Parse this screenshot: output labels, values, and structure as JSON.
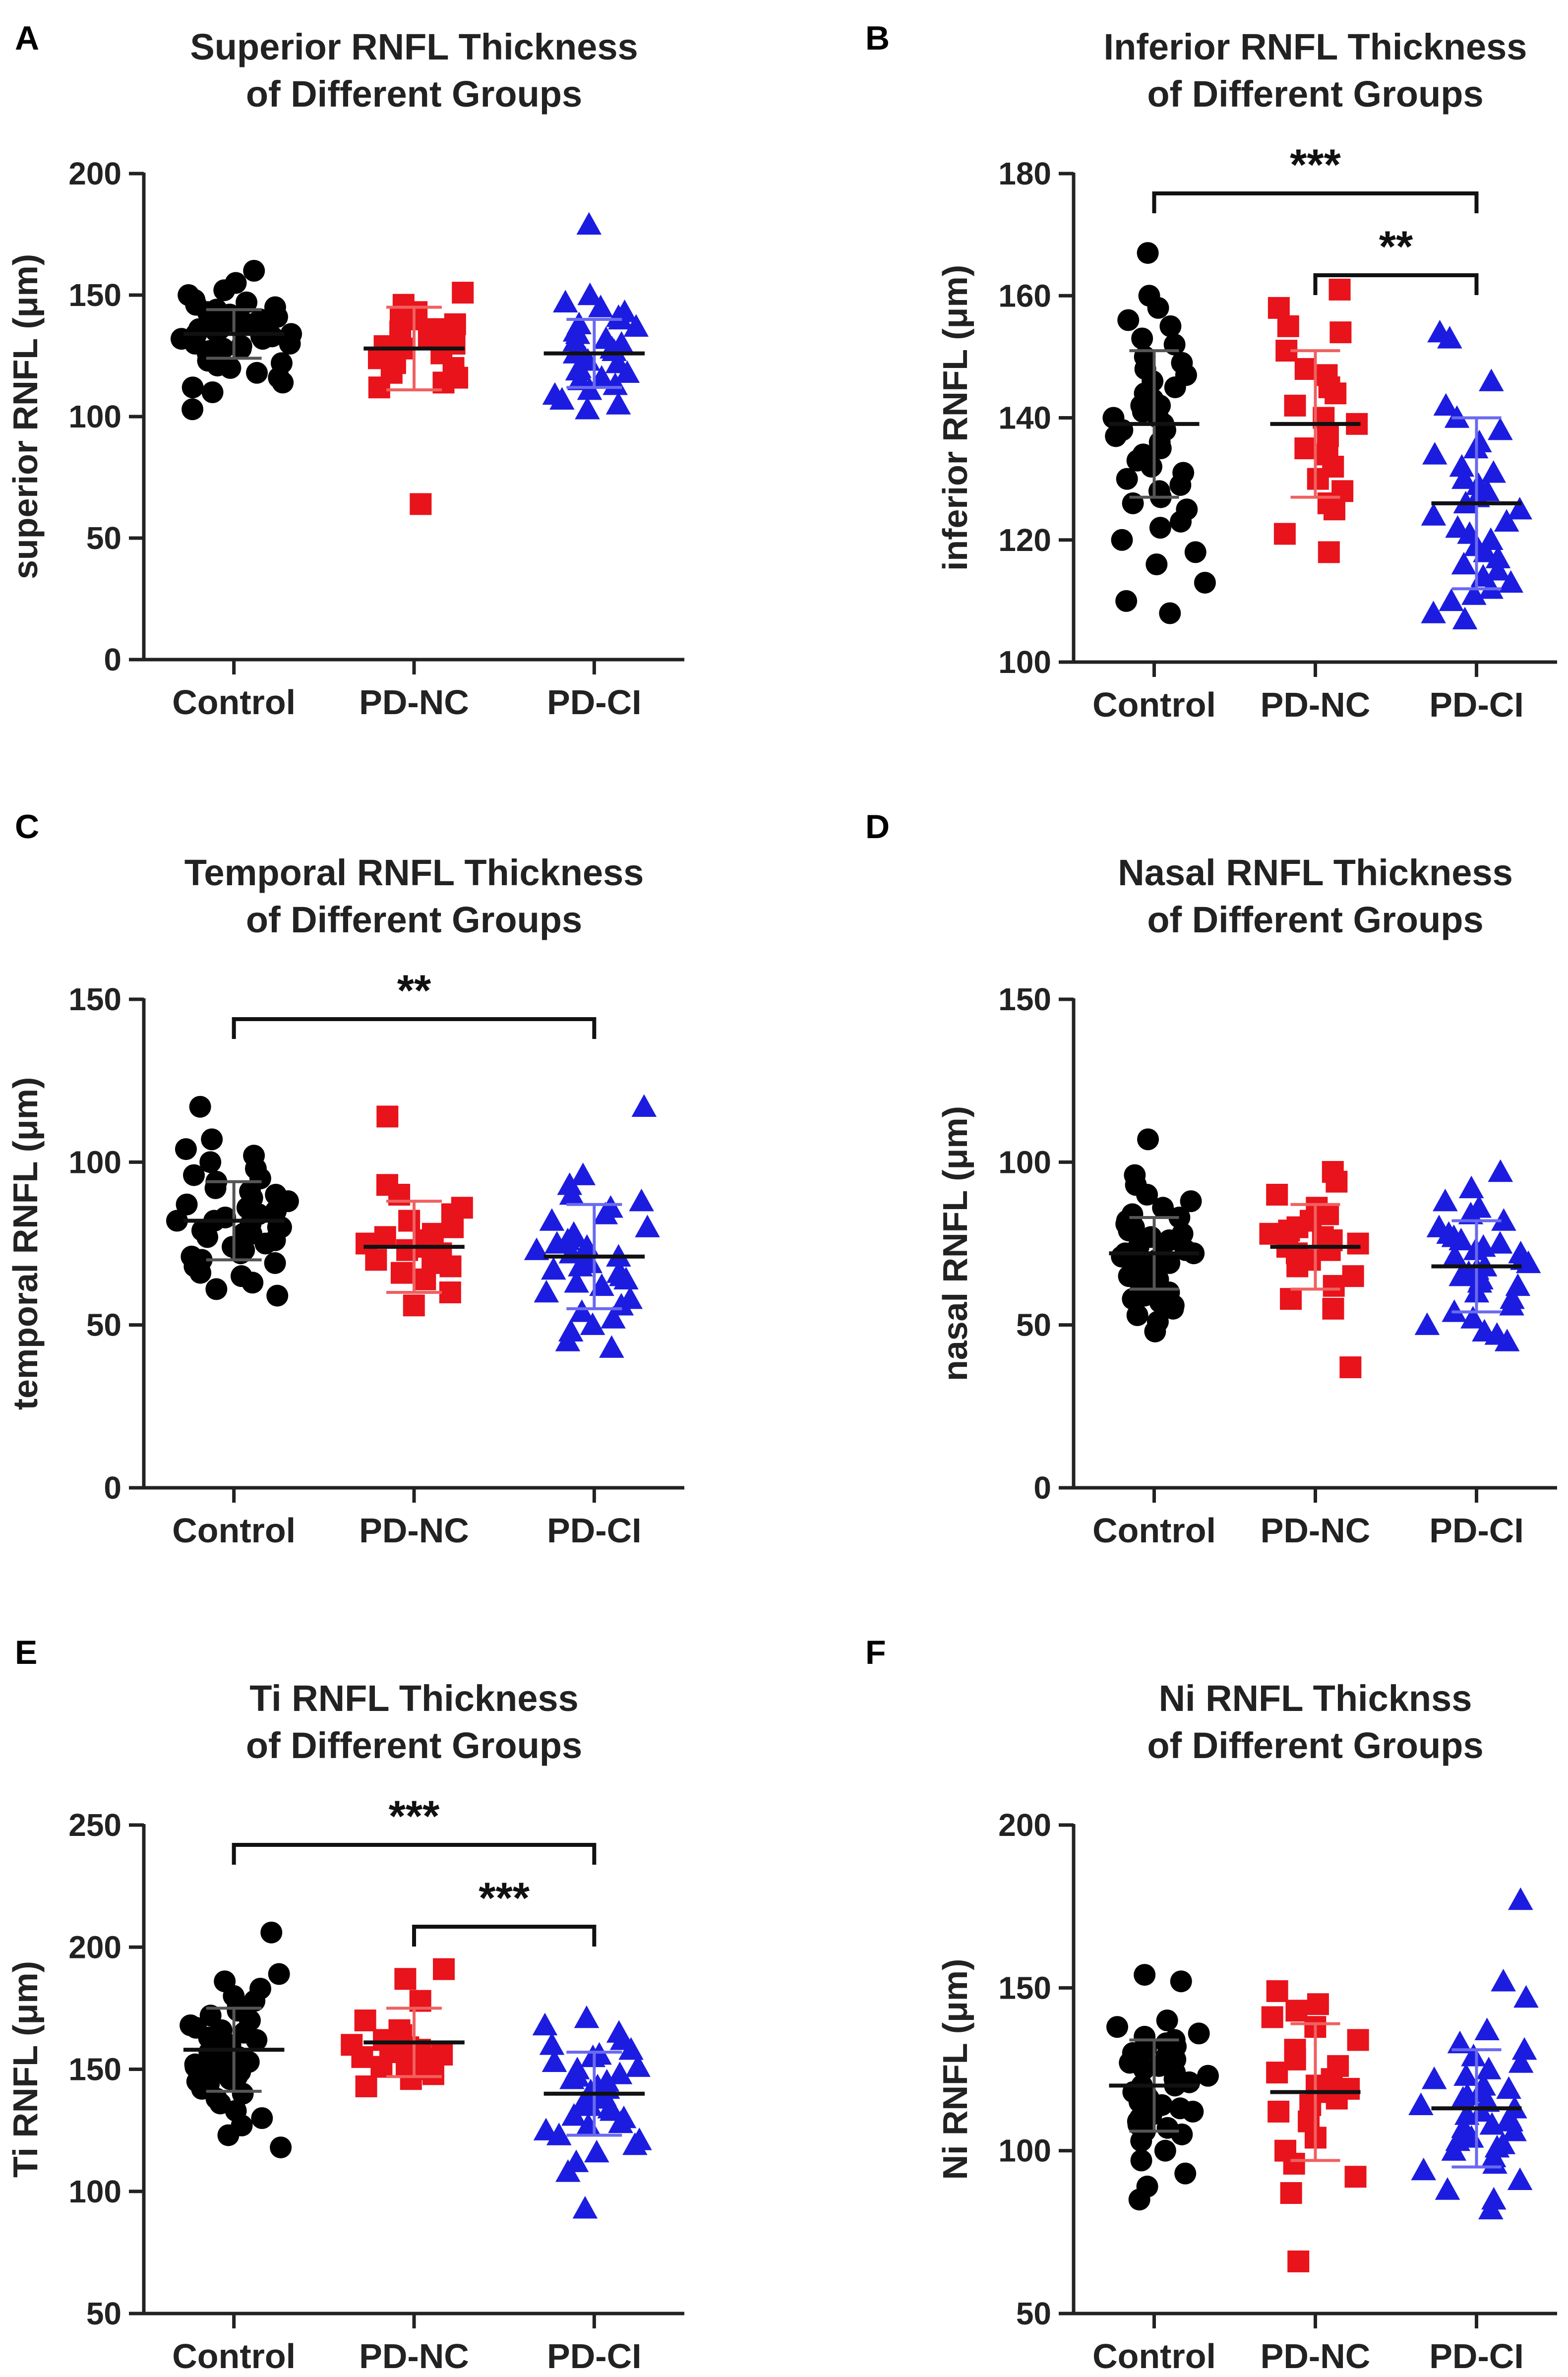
{
  "chart_data": [
    {
      "panel": "A",
      "type": "scatter",
      "title": [
        "Superior RNFL Thickness",
        "of Different Groups"
      ],
      "ylabel": "superior RNFL (μm)",
      "categories": [
        "Control",
        "PD-NC",
        "PD-CI"
      ],
      "ylim": [
        0,
        200
      ],
      "yticks": [
        0,
        50,
        100,
        150,
        200
      ],
      "means": [
        134,
        128,
        126
      ],
      "sd": [
        10,
        17,
        14
      ],
      "series": [
        {
          "name": "Control",
          "color": "#000000",
          "marker": "circle",
          "values": [
            160,
            155,
            152,
            150,
            148,
            147,
            146,
            145,
            144,
            143,
            142,
            141,
            140,
            140,
            139,
            138,
            138,
            137,
            137,
            136,
            136,
            135,
            135,
            134,
            134,
            133,
            133,
            132,
            132,
            131,
            130,
            130,
            129,
            128,
            128,
            127,
            126,
            125,
            124,
            123,
            122,
            121,
            120,
            118,
            116,
            114,
            112,
            110,
            103
          ]
        },
        {
          "name": "PD-NC",
          "color": "#e8131b",
          "marker": "square",
          "values": [
            151,
            146,
            143,
            141,
            140,
            138,
            136,
            135,
            133,
            132,
            130,
            129,
            128,
            126,
            124,
            122,
            120,
            118,
            116,
            114,
            112,
            64
          ]
        },
        {
          "name": "PD-CI",
          "color": "#1c1ce0",
          "marker": "triangle",
          "values": [
            179,
            150,
            147,
            145,
            143,
            141,
            140,
            138,
            137,
            135,
            134,
            132,
            131,
            130,
            128,
            127,
            126,
            124,
            123,
            122,
            120,
            119,
            118,
            116,
            115,
            113,
            111,
            109,
            107,
            105,
            103
          ]
        }
      ],
      "significance": []
    },
    {
      "panel": "B",
      "type": "scatter",
      "title": [
        "Inferior RNFL Thickness",
        "of Different Groups"
      ],
      "ylabel": "inferior RNFL (μm)",
      "categories": [
        "Control",
        "PD-NC",
        "PD-CI"
      ],
      "ylim": [
        100,
        180
      ],
      "yticks": [
        100,
        120,
        140,
        160,
        180
      ],
      "means": [
        139,
        139,
        126
      ],
      "sd": [
        12,
        12,
        14
      ],
      "series": [
        {
          "name": "Control",
          "color": "#000000",
          "marker": "circle",
          "values": [
            167,
            160,
            158,
            156,
            155,
            153,
            152,
            150,
            149,
            148,
            147,
            146,
            145,
            144,
            143,
            142,
            142,
            141,
            140,
            140,
            139,
            138,
            138,
            137,
            136,
            135,
            134,
            133,
            132,
            131,
            130,
            129,
            128,
            127,
            126,
            125,
            123,
            122,
            120,
            118,
            116,
            113,
            110,
            108
          ]
        },
        {
          "name": "PD-NC",
          "color": "#e8131b",
          "marker": "square",
          "values": [
            161,
            158,
            155,
            154,
            151,
            148,
            147,
            145,
            144,
            142,
            140,
            139,
            137,
            135,
            134,
            132,
            130,
            128,
            126,
            125,
            121,
            118
          ]
        },
        {
          "name": "PD-CI",
          "color": "#1c1ce0",
          "marker": "triangle",
          "values": [
            154,
            153,
            146,
            142,
            140,
            138,
            136,
            135,
            134,
            132,
            131,
            130,
            129,
            128,
            127,
            126,
            125,
            124,
            123,
            122,
            121,
            120,
            119,
            118,
            117,
            116,
            115,
            114,
            113,
            112,
            111,
            110,
            108,
            107
          ]
        }
      ],
      "significance": [
        {
          "from": 0,
          "to": 2,
          "level": 0,
          "label": "***"
        },
        {
          "from": 1,
          "to": 2,
          "level": 1,
          "label": "**"
        }
      ]
    },
    {
      "panel": "C",
      "type": "scatter",
      "title": [
        "Temporal RNFL Thickness",
        "of Different Groups"
      ],
      "ylabel": "temporal RNFL (μm)",
      "categories": [
        "Control",
        "PD-NC",
        "PD-CI"
      ],
      "ylim": [
        0,
        150
      ],
      "yticks": [
        0,
        50,
        100,
        150
      ],
      "means": [
        82,
        74,
        71
      ],
      "sd": [
        12,
        14,
        16
      ],
      "series": [
        {
          "name": "Control",
          "color": "#000000",
          "marker": "circle",
          "values": [
            117,
            107,
            104,
            102,
            100,
            98,
            96,
            95,
            94,
            92,
            91,
            90,
            89,
            88,
            87,
            86,
            85,
            84,
            83,
            82,
            82,
            81,
            80,
            80,
            79,
            78,
            78,
            77,
            76,
            75,
            74,
            73,
            72,
            71,
            70,
            69,
            68,
            67,
            66,
            65,
            63,
            61,
            59
          ]
        },
        {
          "name": "PD-NC",
          "color": "#e8131b",
          "marker": "square",
          "values": [
            114,
            93,
            90,
            86,
            84,
            82,
            80,
            78,
            77,
            76,
            75,
            74,
            73,
            72,
            71,
            70,
            69,
            68,
            66,
            64,
            60,
            56
          ]
        },
        {
          "name": "PD-CI",
          "color": "#1c1ce0",
          "marker": "triangle",
          "values": [
            117,
            96,
            93,
            90,
            88,
            86,
            84,
            82,
            80,
            78,
            77,
            76,
            75,
            74,
            73,
            72,
            71,
            70,
            69,
            68,
            67,
            66,
            65,
            64,
            63,
            62,
            60,
            58,
            56,
            54,
            52,
            50,
            48,
            45,
            43
          ]
        }
      ],
      "significance": [
        {
          "from": 0,
          "to": 2,
          "level": 0,
          "label": "**"
        }
      ]
    },
    {
      "panel": "D",
      "type": "scatter",
      "title": [
        "Nasal RNFL Thickness",
        "of Different Groups"
      ],
      "ylabel": "nasal RNFL (μm)",
      "categories": [
        "Control",
        "PD-NC",
        "PD-CI"
      ],
      "ylim": [
        0,
        150
      ],
      "yticks": [
        0,
        50,
        100,
        150
      ],
      "means": [
        72,
        74,
        68
      ],
      "sd": [
        11,
        13,
        14
      ],
      "series": [
        {
          "name": "Control",
          "color": "#000000",
          "marker": "circle",
          "values": [
            107,
            96,
            93,
            90,
            88,
            86,
            84,
            83,
            82,
            81,
            80,
            79,
            78,
            77,
            76,
            75,
            74,
            73,
            72,
            72,
            71,
            70,
            70,
            69,
            68,
            67,
            66,
            65,
            64,
            63,
            62,
            61,
            60,
            59,
            58,
            57,
            56,
            55,
            53,
            51,
            48
          ]
        },
        {
          "name": "PD-NC",
          "color": "#e8131b",
          "marker": "square",
          "values": [
            97,
            94,
            90,
            86,
            84,
            82,
            80,
            79,
            78,
            77,
            76,
            75,
            74,
            73,
            72,
            70,
            68,
            65,
            62,
            58,
            55,
            37
          ]
        },
        {
          "name": "PD-CI",
          "color": "#1c1ce0",
          "marker": "triangle",
          "values": [
            97,
            92,
            88,
            86,
            84,
            82,
            80,
            78,
            77,
            76,
            75,
            74,
            73,
            72,
            71,
            70,
            69,
            68,
            67,
            66,
            65,
            64,
            63,
            62,
            60,
            58,
            56,
            54,
            52,
            50,
            48,
            47,
            45
          ]
        }
      ],
      "significance": []
    },
    {
      "panel": "E",
      "type": "scatter",
      "title": [
        "Ti RNFL Thickness",
        "of Different Groups"
      ],
      "ylabel": "Ti RNFL (μm)",
      "categories": [
        "Control",
        "PD-NC",
        "PD-CI"
      ],
      "ylim": [
        50,
        250
      ],
      "yticks": [
        50,
        100,
        150,
        200,
        250
      ],
      "means": [
        158,
        161,
        140
      ],
      "sd": [
        17,
        14,
        17
      ],
      "series": [
        {
          "name": "Control",
          "color": "#000000",
          "marker": "circle",
          "values": [
            206,
            189,
            186,
            183,
            180,
            178,
            176,
            174,
            172,
            170,
            168,
            167,
            166,
            165,
            164,
            163,
            162,
            161,
            160,
            159,
            158,
            157,
            156,
            155,
            154,
            153,
            152,
            151,
            150,
            149,
            148,
            147,
            146,
            145,
            144,
            142,
            140,
            138,
            136,
            133,
            130,
            127,
            123,
            118
          ]
        },
        {
          "name": "PD-NC",
          "color": "#e8131b",
          "marker": "square",
          "values": [
            191,
            187,
            178,
            170,
            166,
            164,
            162,
            161,
            160,
            159,
            158,
            157,
            156,
            155,
            154,
            153,
            152,
            151,
            150,
            148,
            146,
            143
          ]
        },
        {
          "name": "PD-CI",
          "color": "#1c1ce0",
          "marker": "triangle",
          "values": [
            171,
            168,
            165,
            162,
            160,
            158,
            156,
            155,
            153,
            151,
            150,
            148,
            147,
            146,
            145,
            143,
            142,
            141,
            140,
            139,
            138,
            136,
            135,
            134,
            133,
            131,
            130,
            128,
            127,
            125,
            123,
            121,
            119,
            116,
            112,
            108,
            93
          ]
        }
      ],
      "significance": [
        {
          "from": 0,
          "to": 2,
          "level": 0,
          "label": "***"
        },
        {
          "from": 1,
          "to": 2,
          "level": 1,
          "label": "***"
        }
      ]
    },
    {
      "panel": "F",
      "type": "scatter",
      "title": [
        "Ni RNFL Thicknss",
        "of Different Groups"
      ],
      "ylabel": "Ni RNFL (μm)",
      "categories": [
        "Control",
        "PD-NC",
        "PD-CI"
      ],
      "ylim": [
        50,
        200
      ],
      "yticks": [
        50,
        100,
        150,
        200
      ],
      "means": [
        120,
        118,
        113
      ],
      "sd": [
        14,
        21,
        18
      ],
      "series": [
        {
          "name": "Control",
          "color": "#000000",
          "marker": "circle",
          "values": [
            154,
            152,
            140,
            138,
            136,
            135,
            134,
            133,
            132,
            131,
            130,
            129,
            128,
            127,
            126,
            125,
            124,
            123,
            122,
            121,
            120,
            120,
            119,
            118,
            117,
            116,
            115,
            114,
            113,
            112,
            111,
            110,
            109,
            108,
            107,
            106,
            105,
            103,
            100,
            97,
            93,
            89,
            85
          ]
        },
        {
          "name": "PD-NC",
          "color": "#e8131b",
          "marker": "square",
          "values": [
            149,
            145,
            143,
            141,
            138,
            134,
            131,
            128,
            126,
            124,
            122,
            120,
            119,
            118,
            116,
            114,
            112,
            109,
            104,
            100,
            96,
            92,
            87,
            66
          ]
        },
        {
          "name": "PD-CI",
          "color": "#1c1ce0",
          "marker": "triangle",
          "values": [
            177,
            152,
            147,
            137,
            133,
            131,
            129,
            127,
            125,
            123,
            122,
            120,
            119,
            118,
            117,
            116,
            115,
            114,
            113,
            112,
            111,
            110,
            109,
            108,
            107,
            106,
            105,
            104,
            103,
            102,
            101,
            100,
            98,
            96,
            94,
            91,
            88,
            85,
            82
          ]
        }
      ],
      "significance": []
    }
  ]
}
